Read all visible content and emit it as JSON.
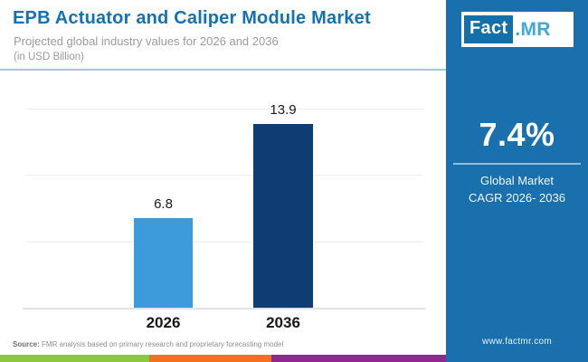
{
  "header": {
    "title": "EPB Actuator and Caliper Module Market",
    "subtitle": "Projected global industry values for 2026 and 2036",
    "unit_note": "(in USD Billion)"
  },
  "chart_data": {
    "type": "bar",
    "categories": [
      "2026",
      "2036"
    ],
    "values": [
      6.8,
      13.9
    ],
    "value_labels": [
      "6.8",
      "13.9"
    ],
    "title": "EPB Actuator and Caliper Module Market",
    "xlabel": "",
    "ylabel": "USD Billion",
    "ylim": [
      0,
      15
    ],
    "gridlines": [
      5,
      10,
      15
    ],
    "grid": "horizontal, faint, no y-axis tick labels",
    "legend": "none",
    "bar_colors": [
      "#3d9bdc",
      "#0d3d73"
    ]
  },
  "sidebar": {
    "logo": {
      "fact": "Fact",
      "dot_mr": ".MR"
    },
    "cagr_value": "7.4%",
    "cagr_label_line1": "Global Market",
    "cagr_label_line2": "CAGR 2026- 2036",
    "website": "www.factmr.com",
    "panel_color": "#1a6fad"
  },
  "footer": {
    "source_label": "Source:",
    "source_text": " FMR analysis based on primary research and proprietary forecasting model",
    "stripe_colors": [
      "#8dc63f",
      "#f37021",
      "#92278f"
    ]
  },
  "colors": {
    "title_blue": "#1273b4",
    "subtitle_gray": "#9b9b9b",
    "bar_2026": "#3d9bdc",
    "bar_2036": "#0d3d73",
    "panel_blue": "#1a6fad",
    "logo_light_blue": "#3fa9dc"
  }
}
